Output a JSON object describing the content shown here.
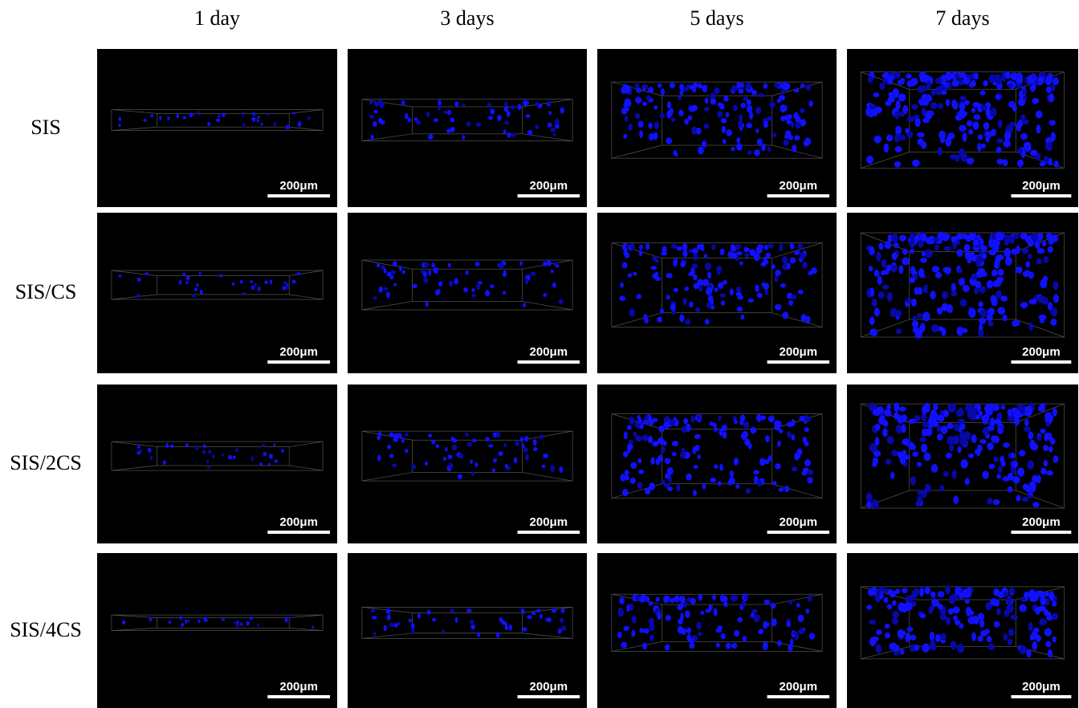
{
  "columns": [
    "1 day",
    "3 days",
    "5 days",
    "7 days"
  ],
  "rows": [
    "SIS",
    "SIS/CS",
    "SIS/2CS",
    "SIS/4CS"
  ],
  "scale_bars": [
    [
      "200μm",
      "200μm",
      "200μm",
      "200μm"
    ],
    [
      "200μm",
      "200μm",
      "200μm",
      "200μm"
    ],
    [
      "200μm",
      "200μm",
      "200μm",
      "200μm"
    ],
    [
      "200μm",
      "200μm",
      "200μm",
      "200μm"
    ]
  ]
}
